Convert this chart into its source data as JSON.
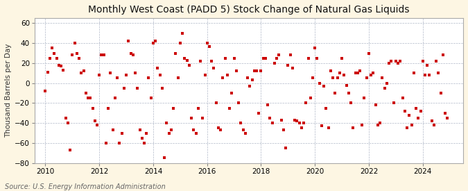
{
  "title": "Monthly West Coast (PADD 5) Stock Change of Natural Gas Liquids",
  "ylabel": "Thousand Barrels per Day",
  "source": "Source: U.S. Energy Information Administration",
  "ylim": [
    -80,
    65
  ],
  "yticks": [
    -80,
    -60,
    -40,
    -20,
    0,
    20,
    40,
    60
  ],
  "xlim_start": 2009.6,
  "xlim_end": 2025.5,
  "xticks": [
    2010,
    2012,
    2014,
    2016,
    2018,
    2020,
    2022,
    2024
  ],
  "outer_bg_color": "#fdf6e3",
  "plot_bg_color": "#ffffff",
  "marker_color": "#cc0000",
  "marker_size": 5,
  "title_fontsize": 10,
  "label_fontsize": 7.5,
  "tick_fontsize": 7.5,
  "source_fontsize": 7,
  "data": [
    [
      2010.0,
      -8
    ],
    [
      2010.083,
      11
    ],
    [
      2010.167,
      25
    ],
    [
      2010.25,
      35
    ],
    [
      2010.333,
      30
    ],
    [
      2010.417,
      25
    ],
    [
      2010.5,
      18
    ],
    [
      2010.583,
      17
    ],
    [
      2010.667,
      13
    ],
    [
      2010.75,
      -35
    ],
    [
      2010.833,
      -40
    ],
    [
      2010.917,
      -67
    ],
    [
      2011.0,
      28
    ],
    [
      2011.083,
      40
    ],
    [
      2011.167,
      30
    ],
    [
      2011.25,
      25
    ],
    [
      2011.333,
      10
    ],
    [
      2011.417,
      12
    ],
    [
      2011.5,
      -10
    ],
    [
      2011.583,
      -15
    ],
    [
      2011.667,
      -15
    ],
    [
      2011.75,
      -25
    ],
    [
      2011.833,
      -38
    ],
    [
      2011.917,
      -42
    ],
    [
      2012.0,
      8
    ],
    [
      2012.083,
      28
    ],
    [
      2012.167,
      28
    ],
    [
      2012.25,
      -60
    ],
    [
      2012.333,
      -25
    ],
    [
      2012.417,
      10
    ],
    [
      2012.5,
      -47
    ],
    [
      2012.583,
      -15
    ],
    [
      2012.667,
      5
    ],
    [
      2012.75,
      -60
    ],
    [
      2012.833,
      -50
    ],
    [
      2012.917,
      -5
    ],
    [
      2013.0,
      8
    ],
    [
      2013.083,
      42
    ],
    [
      2013.167,
      30
    ],
    [
      2013.25,
      28
    ],
    [
      2013.333,
      10
    ],
    [
      2013.417,
      -5
    ],
    [
      2013.5,
      -47
    ],
    [
      2013.583,
      -55
    ],
    [
      2013.667,
      -60
    ],
    [
      2013.75,
      -50
    ],
    [
      2013.833,
      5
    ],
    [
      2013.917,
      -15
    ],
    [
      2014.0,
      40
    ],
    [
      2014.083,
      42
    ],
    [
      2014.167,
      15
    ],
    [
      2014.25,
      8
    ],
    [
      2014.333,
      -5
    ],
    [
      2014.417,
      -75
    ],
    [
      2014.5,
      -40
    ],
    [
      2014.583,
      -50
    ],
    [
      2014.667,
      -47
    ],
    [
      2014.75,
      -25
    ],
    [
      2014.833,
      30
    ],
    [
      2014.917,
      5
    ],
    [
      2015.0,
      40
    ],
    [
      2015.083,
      50
    ],
    [
      2015.167,
      25
    ],
    [
      2015.25,
      23
    ],
    [
      2015.333,
      18
    ],
    [
      2015.417,
      -35
    ],
    [
      2015.5,
      -47
    ],
    [
      2015.583,
      -50
    ],
    [
      2015.667,
      -25
    ],
    [
      2015.75,
      22
    ],
    [
      2015.833,
      -35
    ],
    [
      2015.917,
      8
    ],
    [
      2016.0,
      40
    ],
    [
      2016.083,
      37
    ],
    [
      2016.167,
      22
    ],
    [
      2016.25,
      15
    ],
    [
      2016.333,
      -20
    ],
    [
      2016.417,
      -45
    ],
    [
      2016.5,
      -47
    ],
    [
      2016.583,
      5
    ],
    [
      2016.667,
      25
    ],
    [
      2016.75,
      8
    ],
    [
      2016.833,
      -25
    ],
    [
      2016.917,
      -10
    ],
    [
      2017.0,
      25
    ],
    [
      2017.083,
      12
    ],
    [
      2017.167,
      -20
    ],
    [
      2017.25,
      -40
    ],
    [
      2017.333,
      -47
    ],
    [
      2017.417,
      -50
    ],
    [
      2017.5,
      5
    ],
    [
      2017.583,
      -3
    ],
    [
      2017.667,
      3
    ],
    [
      2017.75,
      12
    ],
    [
      2017.833,
      12
    ],
    [
      2017.917,
      -30
    ],
    [
      2018.0,
      12
    ],
    [
      2018.083,
      25
    ],
    [
      2018.167,
      25
    ],
    [
      2018.25,
      -22
    ],
    [
      2018.333,
      -35
    ],
    [
      2018.417,
      -40
    ],
    [
      2018.5,
      20
    ],
    [
      2018.583,
      25
    ],
    [
      2018.667,
      28
    ],
    [
      2018.75,
      -37
    ],
    [
      2018.833,
      -47
    ],
    [
      2018.917,
      -65
    ],
    [
      2019.0,
      18
    ],
    [
      2019.083,
      28
    ],
    [
      2019.167,
      15
    ],
    [
      2019.25,
      -37
    ],
    [
      2019.333,
      -38
    ],
    [
      2019.417,
      -40
    ],
    [
      2019.5,
      -45
    ],
    [
      2019.583,
      -40
    ],
    [
      2019.667,
      -20
    ],
    [
      2019.75,
      25
    ],
    [
      2019.833,
      -15
    ],
    [
      2019.917,
      5
    ],
    [
      2020.0,
      35
    ],
    [
      2020.083,
      25
    ],
    [
      2020.167,
      0
    ],
    [
      2020.25,
      -43
    ],
    [
      2020.333,
      -3
    ],
    [
      2020.417,
      -25
    ],
    [
      2020.5,
      -45
    ],
    [
      2020.583,
      12
    ],
    [
      2020.667,
      5
    ],
    [
      2020.75,
      -10
    ],
    [
      2020.833,
      5
    ],
    [
      2020.917,
      10
    ],
    [
      2021.0,
      25
    ],
    [
      2021.083,
      8
    ],
    [
      2021.167,
      -2
    ],
    [
      2021.25,
      -10
    ],
    [
      2021.333,
      -20
    ],
    [
      2021.417,
      -45
    ],
    [
      2021.5,
      10
    ],
    [
      2021.583,
      10
    ],
    [
      2021.667,
      12
    ],
    [
      2021.75,
      -42
    ],
    [
      2021.833,
      -15
    ],
    [
      2021.917,
      5
    ],
    [
      2022.0,
      30
    ],
    [
      2022.083,
      8
    ],
    [
      2022.167,
      10
    ],
    [
      2022.25,
      -22
    ],
    [
      2022.333,
      -42
    ],
    [
      2022.417,
      -40
    ],
    [
      2022.5,
      5
    ],
    [
      2022.583,
      -5
    ],
    [
      2022.667,
      0
    ],
    [
      2022.75,
      20
    ],
    [
      2022.833,
      22
    ],
    [
      2022.917,
      -20
    ],
    [
      2023.0,
      22
    ],
    [
      2023.083,
      20
    ],
    [
      2023.167,
      22
    ],
    [
      2023.25,
      -15
    ],
    [
      2023.333,
      -28
    ],
    [
      2023.417,
      -45
    ],
    [
      2023.5,
      -32
    ],
    [
      2023.583,
      -42
    ],
    [
      2023.667,
      10
    ],
    [
      2023.75,
      -25
    ],
    [
      2023.833,
      -35
    ],
    [
      2023.917,
      -28
    ],
    [
      2024.0,
      22
    ],
    [
      2024.083,
      8
    ],
    [
      2024.167,
      18
    ],
    [
      2024.25,
      8
    ],
    [
      2024.333,
      -38
    ],
    [
      2024.417,
      -42
    ],
    [
      2024.5,
      22
    ],
    [
      2024.583,
      10
    ],
    [
      2024.667,
      -10
    ],
    [
      2024.75,
      28
    ],
    [
      2024.833,
      -30
    ],
    [
      2024.917,
      -35
    ]
  ]
}
